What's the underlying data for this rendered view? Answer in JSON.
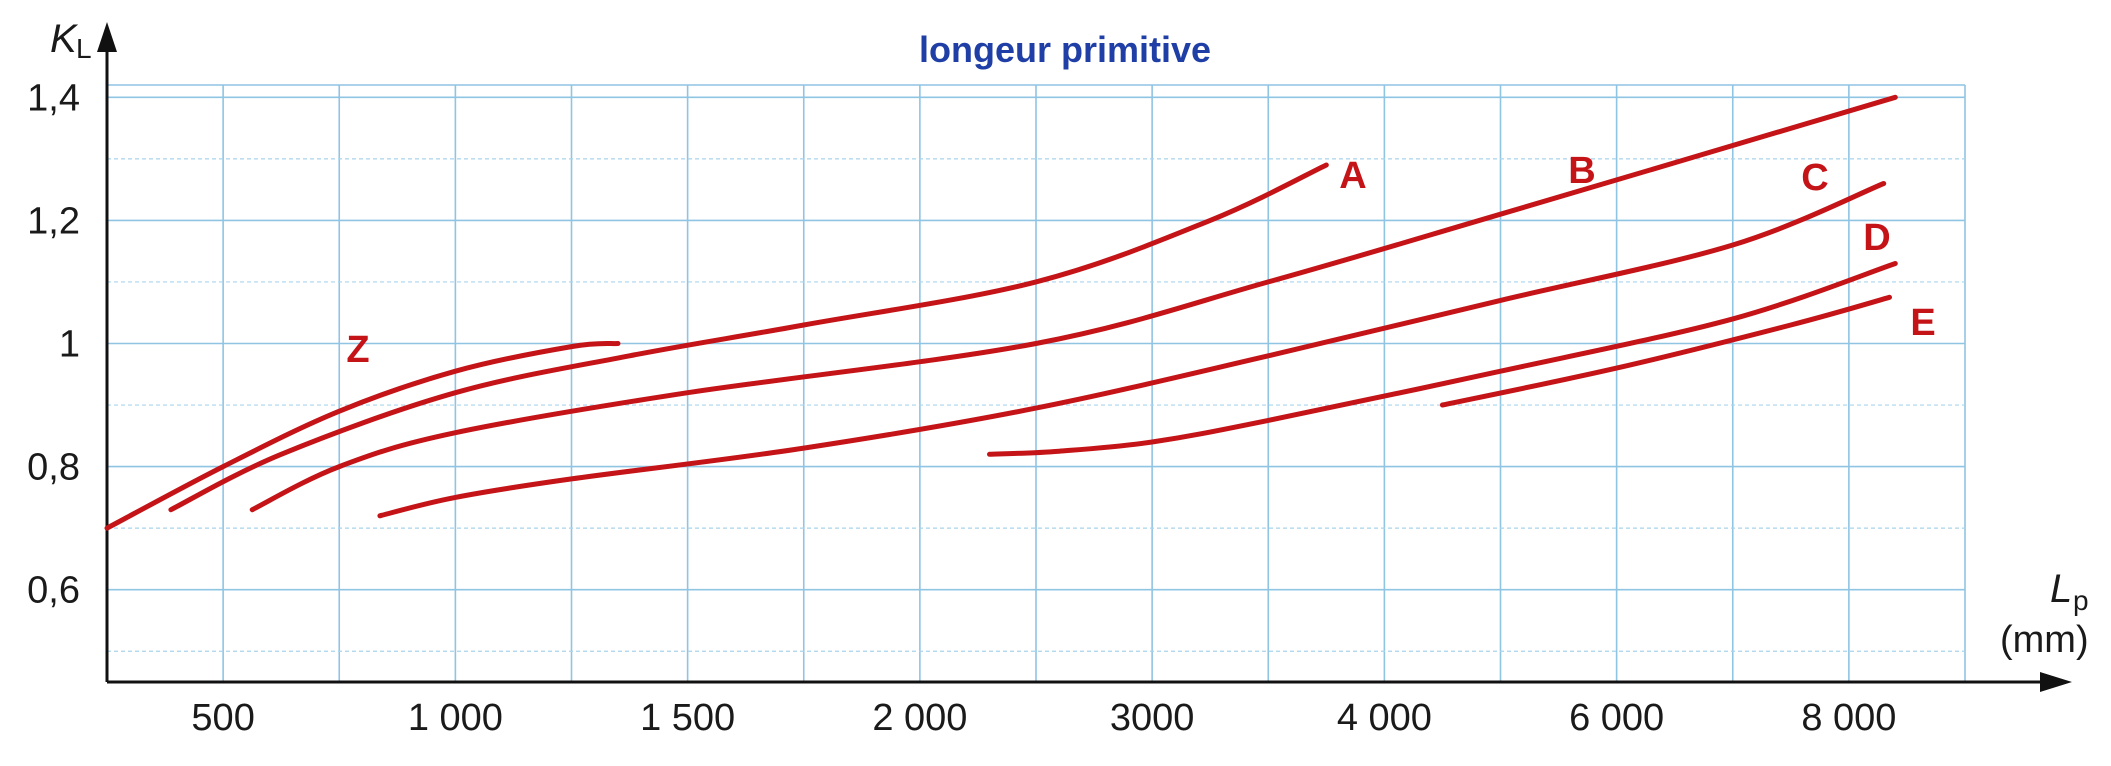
{
  "chart_data": {
    "type": "line",
    "title": "longeur primitive",
    "ylabel_main": "K",
    "ylabel_sub": "L",
    "xlabel_main": "L",
    "xlabel_sub": "p",
    "xlabel_unit": "(mm)",
    "x_tick_labels": [
      "500",
      "1 000",
      "1 500",
      "2 000",
      "3000",
      "4 000",
      "6 000",
      "8 000"
    ],
    "y_ticks": [
      {
        "value": 1.4,
        "label": "1,4"
      },
      {
        "value": 1.2,
        "label": "1,2"
      },
      {
        "value": 1.0,
        "label": "1"
      },
      {
        "value": 0.8,
        "label": "0,8"
      },
      {
        "value": 0.6,
        "label": "0,6"
      }
    ],
    "ylim": [
      0.45,
      1.42
    ],
    "x_cells": 16,
    "grid": true,
    "colors": {
      "curve": "#c41418",
      "title": "#1f3fa6",
      "grid": "#8fc4e3"
    },
    "series": [
      {
        "name": "Z",
        "points": [
          [
            0,
            0.7
          ],
          [
            1,
            0.8
          ],
          [
            2,
            0.89
          ],
          [
            3,
            0.955
          ],
          [
            4,
            0.995
          ],
          [
            4.4,
            1.0
          ]
        ]
      },
      {
        "name": "A",
        "points": [
          [
            0.55,
            0.73
          ],
          [
            1.5,
            0.82
          ],
          [
            3,
            0.92
          ],
          [
            4.5,
            0.98
          ],
          [
            6,
            1.03
          ],
          [
            8,
            1.1
          ],
          [
            9.5,
            1.2
          ],
          [
            10.5,
            1.29
          ]
        ]
      },
      {
        "name": "B",
        "points": [
          [
            1.25,
            0.73
          ],
          [
            2,
            0.8
          ],
          [
            3,
            0.855
          ],
          [
            5,
            0.92
          ],
          [
            8,
            1.0
          ],
          [
            10,
            1.1
          ],
          [
            12,
            1.21
          ],
          [
            15.4,
            1.4
          ]
        ]
      },
      {
        "name": "C",
        "points": [
          [
            2.35,
            0.72
          ],
          [
            3,
            0.75
          ],
          [
            4,
            0.78
          ],
          [
            6,
            0.83
          ],
          [
            8,
            0.895
          ],
          [
            10,
            0.98
          ],
          [
            12,
            1.07
          ],
          [
            14,
            1.16
          ],
          [
            15.3,
            1.26
          ]
        ]
      },
      {
        "name": "D",
        "points": [
          [
            7.6,
            0.82
          ],
          [
            8.2,
            0.825
          ],
          [
            9,
            0.84
          ],
          [
            10,
            0.875
          ],
          [
            12,
            0.955
          ],
          [
            14,
            1.04
          ],
          [
            15.4,
            1.13
          ]
        ]
      },
      {
        "name": "E",
        "points": [
          [
            11.5,
            0.9
          ],
          [
            13,
            0.96
          ],
          [
            14.5,
            1.03
          ],
          [
            15.35,
            1.075
          ]
        ]
      }
    ]
  }
}
